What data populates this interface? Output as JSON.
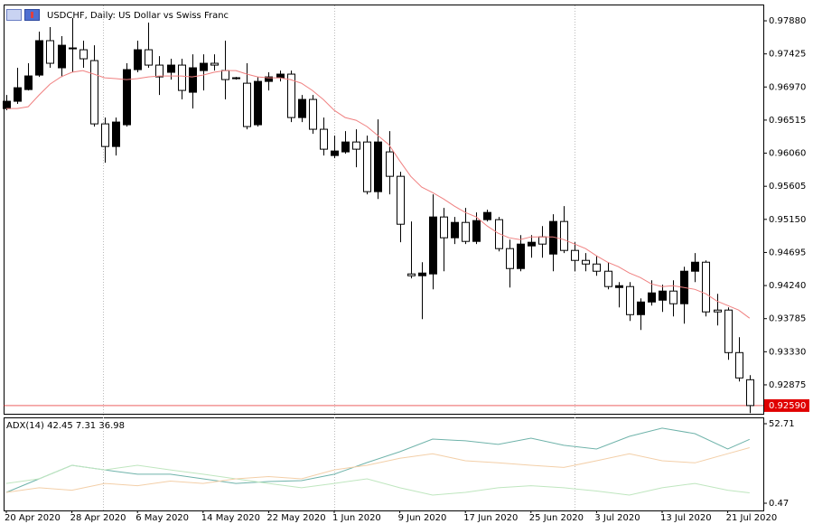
{
  "chart_data": {
    "type": "candlestick",
    "title": "USDCHF, Daily:  US Dollar vs Swiss Franc",
    "categories": [
      "20 Apr 2020",
      null,
      null,
      null,
      null,
      null,
      "28 Apr 2020",
      null,
      null,
      null,
      null,
      null,
      "6 May 2020",
      null,
      null,
      null,
      null,
      null,
      "14 May 2020",
      null,
      null,
      null,
      null,
      null,
      "22 May 2020",
      null,
      null,
      null,
      null,
      null,
      "1 Jun 2020",
      null,
      null,
      null,
      null,
      null,
      "9 Jun 2020",
      null,
      null,
      null,
      null,
      null,
      "17 Jun 2020",
      null,
      null,
      null,
      null,
      null,
      "25 Jun 2020",
      null,
      null,
      null,
      null,
      null,
      "3 Jul 2020",
      null,
      null,
      null,
      null,
      null,
      "13 Jul 2020",
      null,
      null,
      null,
      null,
      null,
      "21 Jul 2020",
      null,
      null
    ],
    "open": [
      0.96674,
      0.96774,
      0.96935,
      0.97134,
      0.97607,
      0.97234,
      0.97507,
      0.97482,
      0.97333,
      0.96463,
      0.96152,
      0.96451,
      0.97209,
      0.97482,
      0.97271,
      0.97172,
      0.97271,
      0.96898,
      0.97196,
      0.97296,
      0.97196,
      0.97085,
      0.97022,
      0.96451,
      0.97047,
      0.97097,
      0.97147,
      0.9655,
      0.96799,
      0.96389,
      0.96028,
      0.96078,
      0.96214,
      0.96214,
      0.95531,
      0.96078,
      0.95742,
      0.944,
      0.94375,
      0.944,
      0.95183,
      0.94897,
      0.95108,
      0.94847,
      0.95146,
      0.95146,
      0.94748,
      0.94474,
      0.94785,
      0.94909,
      0.94673,
      0.95121,
      0.94723,
      0.94586,
      0.94536,
      0.94437,
      0.94213,
      0.94226,
      0.9384,
      0.94014,
      0.94039,
      0.94164,
      0.9399,
      0.94437,
      0.94561,
      0.93903,
      0.93903,
      0.93318,
      0.92945
    ],
    "high": [
      0.96861,
      0.97234,
      0.97296,
      0.97731,
      0.97793,
      0.97669,
      0.97917,
      0.97607,
      0.97544,
      0.9655,
      0.9655,
      0.97296,
      0.97607,
      0.97855,
      0.97395,
      0.97358,
      0.97358,
      0.9742,
      0.9742,
      0.9742,
      0.97607,
      0.97109,
      0.97296,
      0.97109,
      0.97172,
      0.97196,
      0.97196,
      0.96861,
      0.96861,
      0.9655,
      0.96301,
      0.96364,
      0.96389,
      0.96301,
      0.96525,
      0.96364,
      0.95804,
      0.95121,
      0.94561,
      0.95494,
      0.95307,
      0.95183,
      0.95307,
      0.95245,
      0.95282,
      0.95183,
      0.94872,
      0.94934,
      0.94934,
      0.95058,
      0.9522,
      0.95332,
      0.94835,
      0.94686,
      0.94648,
      0.94561,
      0.94288,
      0.94288,
      0.94064,
      0.94313,
      0.94251,
      0.94313,
      0.94499,
      0.94686,
      0.94586,
      0.94126,
      0.9394,
      0.9353,
      0.93008
    ],
    "low": [
      0.9665,
      0.96737,
      0.96923,
      0.97109,
      0.97234,
      0.97109,
      0.97172,
      0.97234,
      0.96426,
      0.95929,
      0.96028,
      0.96426,
      0.97172,
      0.97234,
      0.96861,
      0.97072,
      0.96799,
      0.96674,
      0.96923,
      0.97196,
      0.96799,
      0.97072,
      0.96389,
      0.96426,
      0.96923,
      0.97047,
      0.96488,
      0.96488,
      0.96326,
      0.96028,
      0.95991,
      0.96053,
      0.95866,
      0.95494,
      0.95431,
      0.95494,
      0.94835,
      0.94338,
      0.93778,
      0.94188,
      0.94437,
      0.9481,
      0.9481,
      0.9481,
      0.95121,
      0.9471,
      0.94213,
      0.94437,
      0.94623,
      0.94623,
      0.94437,
      0.94686,
      0.94437,
      0.94437,
      0.94375,
      0.94188,
      0.9394,
      0.93753,
      0.93629,
      0.93965,
      0.93878,
      0.93815,
      0.93716,
      0.94288,
      0.93815,
      0.93691,
      0.93219,
      0.92921,
      0.92486
    ],
    "close": [
      0.96774,
      0.9696,
      0.97122,
      0.97607,
      0.97296,
      0.97544,
      0.97507,
      0.97358,
      0.96463,
      0.96152,
      0.96488,
      0.97209,
      0.97482,
      0.97271,
      0.97109,
      0.97271,
      0.96923,
      0.97234,
      0.97296,
      0.97271,
      0.97072,
      0.97097,
      0.96426,
      0.97047,
      0.97109,
      0.97147,
      0.9655,
      0.96799,
      0.96389,
      0.96115,
      0.9609,
      0.96214,
      0.96115,
      0.95531,
      0.96214,
      0.95742,
      0.95083,
      0.94375,
      0.94412,
      0.95183,
      0.94897,
      0.95108,
      0.94847,
      0.95133,
      0.95245,
      0.94748,
      0.94474,
      0.9481,
      0.94835,
      0.9481,
      0.95121,
      0.94723,
      0.94586,
      0.94536,
      0.94437,
      0.94226,
      0.94238,
      0.9384,
      0.94014,
      0.94139,
      0.94164,
      0.9399,
      0.94437,
      0.94561,
      0.93878,
      0.93878,
      0.93318,
      0.9297,
      0.9259
    ],
    "bull_color": "#000000",
    "bear_color": "#ffffff",
    "series": [
      {
        "color": "#f08080",
        "values": [
          0.96674,
          0.96674,
          0.96699,
          0.96861,
          0.9701,
          0.97109,
          0.97172,
          0.97196,
          0.97147,
          0.97097,
          0.97085,
          0.97072,
          0.97085,
          0.97109,
          0.97122,
          0.97122,
          0.97122,
          0.97109,
          0.97134,
          0.97172,
          0.97196,
          0.97196,
          0.97147,
          0.97109,
          0.97097,
          0.97097,
          0.97072,
          0.97022,
          0.96923,
          0.96799,
          0.9665,
          0.9655,
          0.96513,
          0.96426,
          0.96301,
          0.96177,
          0.95953,
          0.95742,
          0.95593,
          0.95518,
          0.95431,
          0.95332,
          0.95245,
          0.95183,
          0.95058,
          0.94959,
          0.94897,
          0.94872,
          0.94909,
          0.94909,
          0.94909,
          0.94872,
          0.9481,
          0.94748,
          0.94648,
          0.94561,
          0.94499,
          0.94412,
          0.9435,
          0.94263,
          0.94226,
          0.94238,
          0.94213,
          0.94188,
          0.94126,
          0.94027,
          0.93965,
          0.93903,
          0.93791
        ]
      }
    ],
    "ylim": [
      0.92477,
      0.98104
    ],
    "yticks": [
      {
        "value": 0.9788,
        "label": "0.97880"
      },
      0.97425,
      {
        "value": 0.9697,
        "label": "0.96970"
      },
      0.96515,
      {
        "value": 0.9606,
        "label": "0.96060"
      },
      0.95605,
      {
        "value": 0.9515,
        "label": "0.95150"
      },
      0.94695,
      {
        "value": 0.9424,
        "label": "0.94240"
      },
      0.93785,
      {
        "value": 0.9333,
        "label": "0.93330"
      },
      0.92875
    ],
    "last_price": {
      "value": 0.9259,
      "label": "0.92590"
    },
    "last_price_color": "#e00000",
    "indicator": {
      "title": "ADX(14) 42.45 7.31 36.98",
      "ylim": [
        -4.28,
        56.87
      ],
      "yticks": [
        52.71,
        0.47
      ],
      "x": [
        0,
        3,
        6,
        9,
        12,
        15,
        18,
        21,
        24,
        27,
        30,
        33,
        36,
        39,
        42,
        45,
        48,
        51,
        54,
        57,
        60,
        63,
        66,
        68
      ],
      "series": [
        {
          "color": "#6fb3aa",
          "values": [
            7.6,
            16.5,
            25.4,
            22.4,
            19.5,
            19.5,
            16.5,
            13.5,
            14.7,
            15.3,
            19.5,
            27.2,
            34.3,
            42.6,
            41.5,
            39.1,
            43.2,
            38.5,
            36.1,
            44.4,
            49.8,
            46.2,
            36.1,
            42.45
          ]
        },
        {
          "color": "#bfe6bf",
          "values": [
            13.5,
            16.5,
            25.4,
            22.4,
            25.4,
            22.4,
            19.5,
            16.5,
            13.5,
            10.6,
            13.5,
            16.5,
            10.6,
            5.8,
            7.6,
            10.6,
            12.0,
            10.6,
            8.5,
            5.8,
            10.6,
            13.5,
            9.0,
            7.31
          ]
        },
        {
          "color": "#f3cfa8",
          "values": [
            7.6,
            10.6,
            9.0,
            13.5,
            12.0,
            15.0,
            13.5,
            16.5,
            18.0,
            16.5,
            22.4,
            25.4,
            30.0,
            33.0,
            28.4,
            27.0,
            25.4,
            24.0,
            28.4,
            33.0,
            28.4,
            27.0,
            33.0,
            36.98
          ]
        }
      ]
    }
  }
}
